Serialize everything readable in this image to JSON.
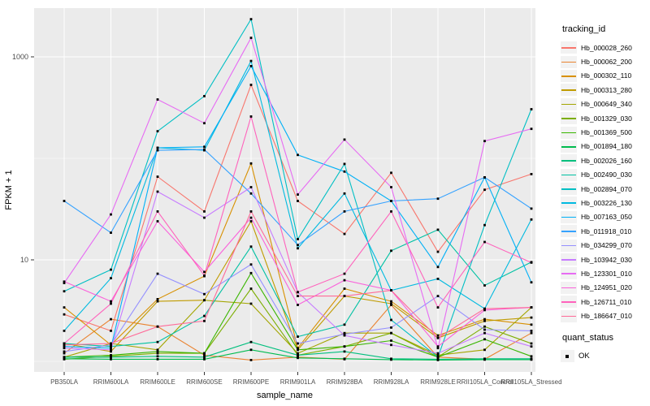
{
  "figure": {
    "background": "#ffffff",
    "panel_bg": "#ebebeb",
    "grid_color": "#ffffff",
    "point_color": "#000000",
    "tick_color": "#333333"
  },
  "axes": {
    "y_label": "FPKM + 1",
    "x_label": "sample_name",
    "y_tick_labels": [
      "1000",
      "10"
    ],
    "y_tick_values": [
      1000,
      10
    ],
    "y_minor_values": [
      1,
      100
    ]
  },
  "legend": {
    "tracking_title": "tracking_id",
    "quant_title": "quant_status",
    "quant_items": [
      {
        "label": "OK"
      }
    ]
  },
  "chart_data": {
    "type": "line",
    "y_scale": "log10",
    "ylim_log10": [
      -0.1,
      3.5
    ],
    "grid": true,
    "legend_position": "right",
    "title": "",
    "xlabel": "sample_name",
    "ylabel": "FPKM + 1",
    "categories": [
      "PB350LA",
      "RRIM600LA",
      "RRIM600LE",
      "RRIM600SE",
      "RRIM600PE",
      "RRIM901LA",
      "RRIM928BA",
      "RRIM928LA",
      "RRIM928LE",
      "RRII105LA_Control",
      "RRII105LA_Stressed"
    ],
    "series": [
      {
        "name": "Hb_000028_260",
        "color": "#F8766D",
        "values": [
          2.9,
          2.0,
          66,
          30,
          530,
          38,
          18,
          72,
          12,
          49,
          70
        ]
      },
      {
        "name": "Hb_000062_200",
        "color": "#EA8331",
        "values": [
          1.2,
          2.6,
          2.2,
          1.15,
          1.03,
          1.1,
          1.05,
          3.6,
          1.1,
          1.05,
          1.9
        ]
      },
      {
        "name": "Hb_000302_110",
        "color": "#D89000",
        "values": [
          3.4,
          1.45,
          4.1,
          6.9,
          89,
          1.35,
          5.2,
          3.9,
          1.8,
          2.6,
          2.3
        ]
      },
      {
        "name": "Hb_000313_280",
        "color": "#C09B00",
        "values": [
          1.5,
          1.25,
          3.9,
          4.0,
          24,
          1.3,
          4.4,
          3.7,
          1.7,
          2.5,
          2.7
        ]
      },
      {
        "name": "Hb_000649_340",
        "color": "#A3A500",
        "values": [
          1.1,
          1.5,
          1.3,
          4.0,
          3.7,
          1.2,
          1.9,
          1.9,
          1.15,
          1.3,
          3.4
        ]
      },
      {
        "name": "Hb_001329_030",
        "color": "#7CAE00",
        "values": [
          1.05,
          1.12,
          1.2,
          1.2,
          5.2,
          1.15,
          1.4,
          1.9,
          1.1,
          2.2,
          1.5
        ]
      },
      {
        "name": "Hb_001369_500",
        "color": "#39B600",
        "values": [
          1.1,
          1.15,
          1.25,
          1.2,
          7.4,
          1.3,
          1.4,
          1.6,
          1.1,
          1.65,
          1.12
        ]
      },
      {
        "name": "Hb_001894_180",
        "color": "#00BB4E",
        "values": [
          1.06,
          1.05,
          1.05,
          1.05,
          1.3,
          1.08,
          1.06,
          1.04,
          1.03,
          1.04,
          1.04
        ]
      },
      {
        "name": "Hb_002026_160",
        "color": "#00BF7D",
        "values": [
          1.1,
          1.1,
          1.12,
          1.1,
          1.55,
          1.15,
          1.25,
          1.06,
          1.05,
          1.06,
          1.06
        ]
      },
      {
        "name": "Hb_002490_030",
        "color": "#00C1A3",
        "values": [
          1.5,
          1.4,
          1.55,
          2.8,
          13.5,
          1.75,
          2.3,
          12.3,
          19.8,
          5.6,
          9.5
        ]
      },
      {
        "name": "Hb_002894_070",
        "color": "#00BFC4",
        "values": [
          4.9,
          8.0,
          185,
          410,
          2350,
          16,
          88,
          2.56,
          1.1,
          22,
          305
        ]
      },
      {
        "name": "Hb_003226_130",
        "color": "#00BAE0",
        "values": [
          2.0,
          6.6,
          127,
          120,
          910,
          13,
          45,
          5.0,
          6.5,
          3.3,
          25
        ]
      },
      {
        "name": "Hb_007163_050",
        "color": "#00B0F6",
        "values": [
          1.4,
          1.35,
          127,
          130,
          810,
          108,
          74,
          38,
          8.5,
          65,
          6.0
        ]
      },
      {
        "name": "Hb_011918_010",
        "color": "#35A2FF",
        "values": [
          38,
          18.5,
          120,
          122,
          45,
          14,
          30,
          38,
          40,
          65,
          32
        ]
      },
      {
        "name": "Hb_034299_070",
        "color": "#9590FF",
        "values": [
          1.25,
          1.45,
          7.3,
          4.6,
          9.0,
          1.5,
          1.85,
          2.15,
          4.4,
          2.05,
          2.0
        ]
      },
      {
        "name": "Hb_103942_030",
        "color": "#C77CFF",
        "values": [
          1.35,
          1.3,
          47,
          26,
          52,
          4.8,
          1.8,
          1.45,
          1.2,
          1.9,
          1.4
        ]
      },
      {
        "name": "Hb_123301_010",
        "color": "#E76BF3",
        "values": [
          5.9,
          28,
          380,
          222,
          1540,
          44,
          153,
          52,
          1.35,
          148,
          195
        ]
      },
      {
        "name": "Hb_124951_020",
        "color": "#FA62DB",
        "values": [
          6.1,
          3.9,
          24,
          7.6,
          26,
          3.6,
          6.3,
          5.0,
          1.4,
          3.2,
          3.4
        ]
      },
      {
        "name": "Hb_126711_010",
        "color": "#FF62BC",
        "values": [
          1.5,
          3.7,
          30,
          7.0,
          258,
          4.8,
          7.3,
          30,
          3.4,
          15,
          9.4
        ]
      },
      {
        "name": "Hb_186647_010",
        "color": "#FF6A98",
        "values": [
          1.45,
          1.5,
          2.2,
          2.5,
          30,
          4.4,
          4.4,
          5.0,
          1.7,
          3.3,
          3.4
        ]
      }
    ]
  }
}
